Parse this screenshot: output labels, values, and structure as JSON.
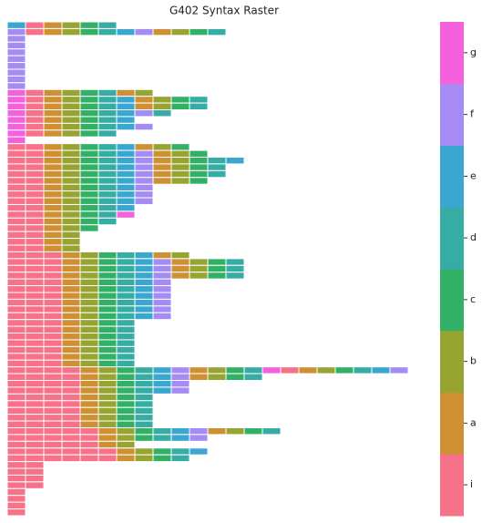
{
  "chart_data": {
    "type": "heatmap",
    "title": "G402 Syntax Raster",
    "colors": [
      "#f77189",
      "#ce9032",
      "#97a431",
      "#32b166",
      "#36ada4",
      "#39a7d0",
      "#a48cf4",
      "#f561dd"
    ],
    "colorbar_ticks": [
      {
        "value": 0,
        "label": "i"
      },
      {
        "value": 1,
        "label": "a"
      },
      {
        "value": 2,
        "label": "b"
      },
      {
        "value": 3,
        "label": "c"
      },
      {
        "value": 4,
        "label": "d"
      },
      {
        "value": 5,
        "label": "e"
      },
      {
        "value": 6,
        "label": "f"
      },
      {
        "value": 7,
        "label": "g"
      }
    ],
    "rows": [
      [
        5,
        0,
        1,
        2,
        3,
        4
      ],
      [
        6,
        0,
        1,
        2,
        3,
        4,
        5,
        6,
        1,
        2,
        3,
        4
      ],
      [
        6
      ],
      [
        6
      ],
      [
        6
      ],
      [
        6
      ],
      [
        6
      ],
      [
        6
      ],
      [
        6
      ],
      [
        6
      ],
      [
        7,
        0,
        1,
        2,
        3,
        4,
        1,
        2
      ],
      [
        7,
        0,
        1,
        2,
        3,
        4,
        5,
        1,
        2,
        3,
        4
      ],
      [
        7,
        0,
        1,
        2,
        3,
        4,
        5,
        1,
        2,
        3,
        4
      ],
      [
        7,
        0,
        1,
        2,
        3,
        4,
        5,
        6,
        4
      ],
      [
        7,
        0,
        1,
        2,
        3,
        4,
        5
      ],
      [
        7,
        0,
        1,
        2,
        3,
        4,
        5,
        6
      ],
      [
        7,
        0,
        1,
        2,
        3,
        4
      ],
      [
        7
      ],
      [
        0,
        0,
        1,
        2,
        3,
        4,
        5,
        1,
        2,
        3
      ],
      [
        0,
        0,
        1,
        2,
        3,
        4,
        5,
        6,
        1,
        2,
        3
      ],
      [
        0,
        0,
        1,
        2,
        3,
        4,
        5,
        6,
        1,
        2,
        3,
        4,
        5
      ],
      [
        0,
        0,
        1,
        2,
        3,
        4,
        5,
        6,
        1,
        2,
        3,
        4
      ],
      [
        0,
        0,
        1,
        2,
        3,
        4,
        5,
        6,
        1,
        2,
        3,
        4
      ],
      [
        0,
        0,
        1,
        2,
        3,
        4,
        5,
        6,
        1,
        2,
        3
      ],
      [
        0,
        0,
        1,
        2,
        3,
        4,
        5,
        6
      ],
      [
        0,
        0,
        1,
        2,
        3,
        4,
        5,
        6
      ],
      [
        0,
        0,
        1,
        2,
        3,
        4,
        5,
        6
      ],
      [
        0,
        0,
        1,
        2,
        3,
        4,
        5
      ],
      [
        0,
        0,
        1,
        2,
        3,
        4,
        7
      ],
      [
        0,
        0,
        1,
        2,
        3,
        4
      ],
      [
        0,
        0,
        1,
        2,
        3
      ],
      [
        0,
        0,
        1,
        2
      ],
      [
        0,
        0,
        1,
        2
      ],
      [
        0,
        0,
        1,
        2
      ],
      [
        0,
        0,
        0,
        1,
        2,
        3,
        4,
        5,
        1,
        2
      ],
      [
        0,
        0,
        0,
        1,
        2,
        3,
        4,
        5,
        6,
        1,
        2,
        3,
        4
      ],
      [
        0,
        0,
        0,
        1,
        2,
        3,
        4,
        5,
        6,
        1,
        2,
        3,
        4
      ],
      [
        0,
        0,
        0,
        1,
        2,
        3,
        4,
        5,
        6,
        1,
        2,
        3,
        4
      ],
      [
        0,
        0,
        0,
        1,
        2,
        3,
        4,
        5,
        6
      ],
      [
        0,
        0,
        0,
        1,
        2,
        3,
        4,
        5,
        6
      ],
      [
        0,
        0,
        0,
        1,
        2,
        3,
        4,
        5,
        6
      ],
      [
        0,
        0,
        0,
        1,
        2,
        3,
        4,
        5,
        6
      ],
      [
        0,
        0,
        0,
        1,
        2,
        3,
        4,
        5,
        6
      ],
      [
        0,
        0,
        0,
        1,
        2,
        3,
        4,
        5,
        6
      ],
      [
        0,
        0,
        0,
        1,
        2,
        3,
        4
      ],
      [
        0,
        0,
        0,
        1,
        2,
        3,
        4
      ],
      [
        0,
        0,
        0,
        1,
        2,
        3,
        4
      ],
      [
        0,
        0,
        0,
        1,
        2,
        3,
        4
      ],
      [
        0,
        0,
        0,
        1,
        2,
        3,
        4
      ],
      [
        0,
        0,
        0,
        1,
        2,
        3,
        4
      ],
      [
        0,
        0,
        0,
        1,
        2,
        3,
        4
      ],
      [
        0,
        0,
        0,
        0,
        1,
        2,
        3,
        4,
        5,
        6,
        1,
        2,
        3,
        4,
        7,
        0,
        1,
        2,
        3,
        4,
        5,
        6
      ],
      [
        0,
        0,
        0,
        0,
        1,
        2,
        3,
        4,
        5,
        6,
        1,
        2,
        3,
        4
      ],
      [
        0,
        0,
        0,
        0,
        1,
        2,
        3,
        4,
        5,
        6
      ],
      [
        0,
        0,
        0,
        0,
        1,
        2,
        3,
        4,
        5,
        6
      ],
      [
        0,
        0,
        0,
        0,
        1,
        2,
        3,
        4
      ],
      [
        0,
        0,
        0,
        0,
        1,
        2,
        3,
        4
      ],
      [
        0,
        0,
        0,
        0,
        1,
        2,
        3,
        4
      ],
      [
        0,
        0,
        0,
        0,
        1,
        2,
        3,
        4
      ],
      [
        0,
        0,
        0,
        0,
        1,
        2,
        3,
        4
      ],
      [
        0,
        0,
        0,
        0,
        0,
        1,
        2,
        3,
        4,
        5,
        6,
        1,
        2,
        3,
        4
      ],
      [
        0,
        0,
        0,
        0,
        0,
        1,
        2,
        3,
        4,
        5,
        6
      ],
      [
        0,
        0,
        0,
        0,
        0,
        1,
        2
      ],
      [
        0,
        0,
        0,
        0,
        0,
        0,
        1,
        2,
        3,
        4,
        5
      ],
      [
        0,
        0,
        0,
        0,
        0,
        0,
        1,
        2,
        3,
        4
      ],
      [
        0,
        0
      ],
      [
        0,
        0
      ],
      [
        0,
        0
      ],
      [
        0,
        0
      ],
      [
        0
      ],
      [
        0
      ],
      [
        0
      ],
      [
        0
      ]
    ]
  }
}
